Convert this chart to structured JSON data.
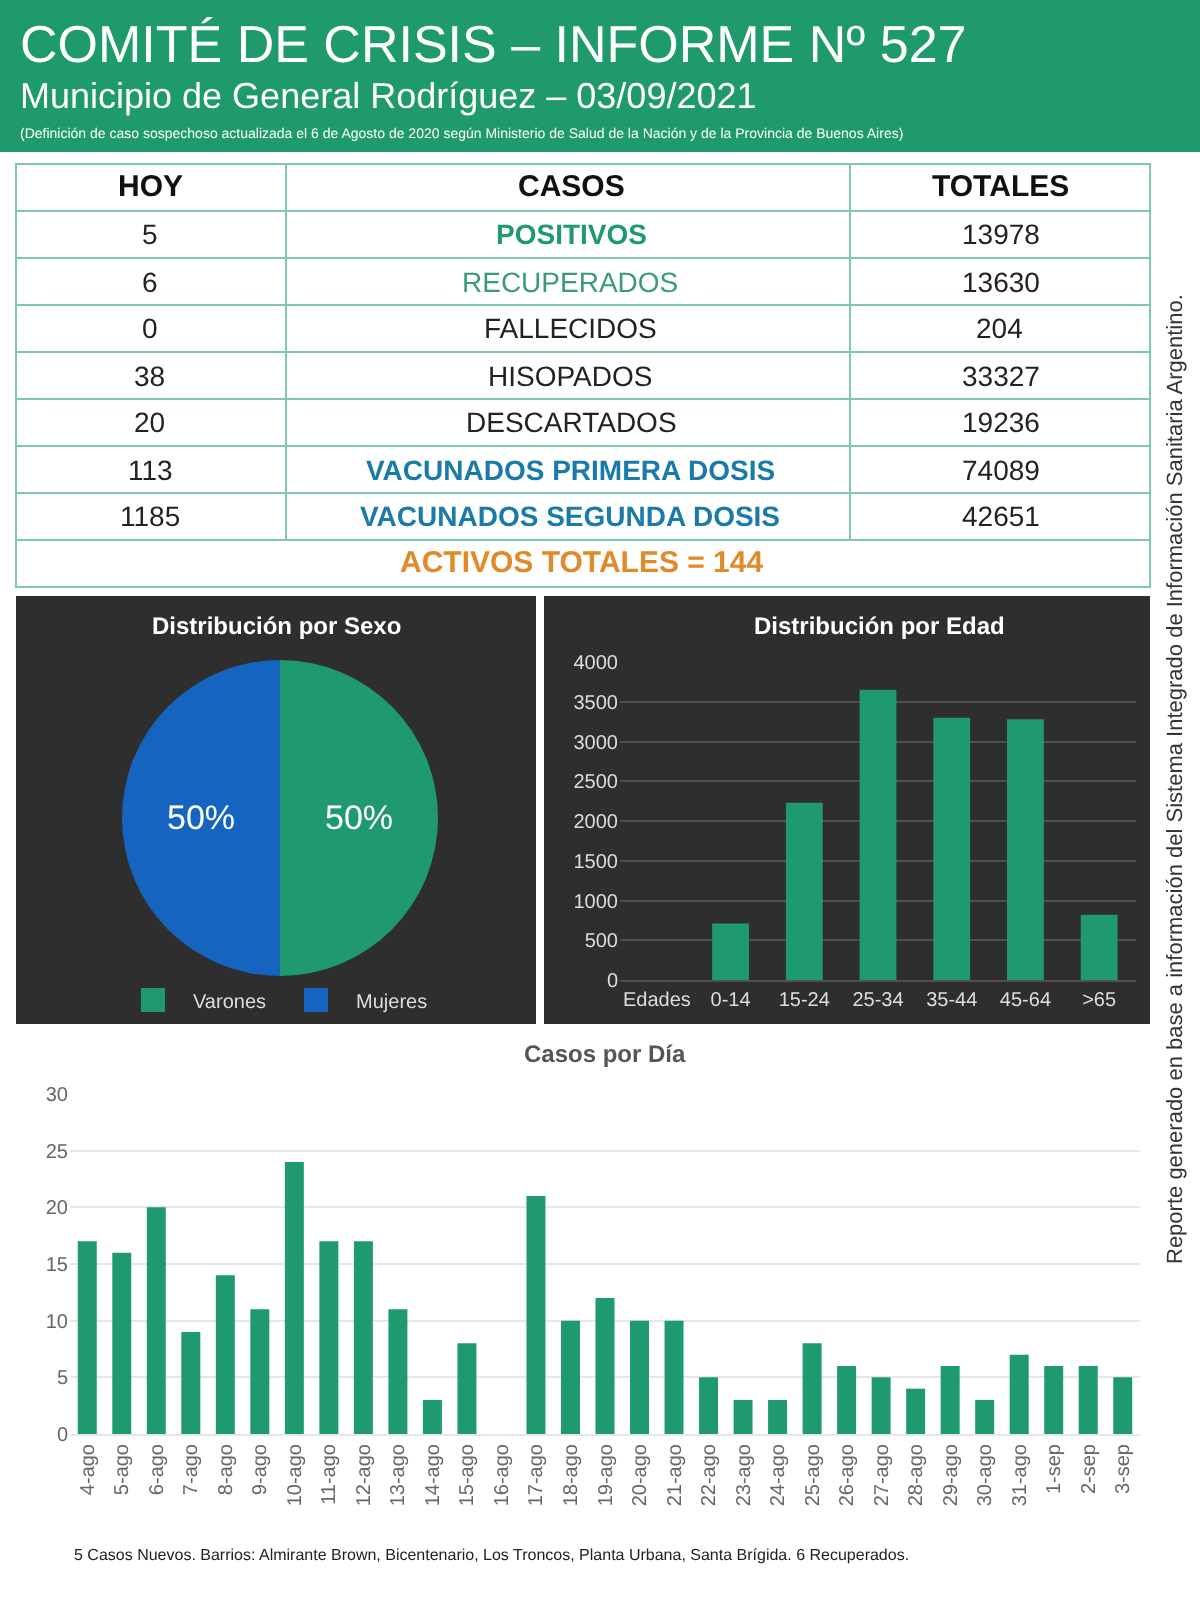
{
  "chart_data": [
    {
      "type": "other",
      "title": "COMITÉ DE CRISIS – INFORME Nº 527",
      "subtitle": "Municipio de General Rodríguez – 03/09/2021",
      "annotations": [
        "(Definición de caso sospechoso actualizada el 6 de Agosto de 2020 según Ministerio de Salud de la Nación y de la Provincia de Buenos Aires)",
        "HOY",
        "CASOS",
        "TOTALES",
        "5",
        "POSITIVOS",
        "13978",
        "6",
        "RECUPERADOS",
        "13630",
        "0",
        "FALLECIDOS",
        "204",
        "38",
        "HISOPADOS",
        "33327",
        "20",
        "DESCARTADOS",
        "19236",
        "113",
        "VACUNADOS PRIMERA DOSIS",
        "74089",
        "1185",
        "VACUNADOS SEGUNDA DOSIS",
        "42651",
        "ACTIVOS TOTALES = 144"
      ]
    },
    {
      "type": "pie",
      "title": "Distribución por Sexo",
      "categories": [
        "Varones",
        "Mujeres"
      ],
      "values": [
        50,
        50
      ],
      "colors": [
        "#1f9a6e",
        "#1565c0"
      ],
      "value_labels": [
        "50%",
        "50%"
      ],
      "legend": "bottom"
    },
    {
      "type": "bar",
      "title": "Distribución por Edad",
      "categories": [
        "Edades",
        "0-14",
        "15-24",
        "25-34",
        "35-44",
        "45-64",
        ">65"
      ],
      "values": [
        null,
        710,
        2230,
        3650,
        3300,
        3280,
        820
      ],
      "color": "#1f9a6e",
      "ylim": [
        0,
        4000
      ],
      "yticks": [
        0,
        500,
        1000,
        1500,
        2000,
        2500,
        3000,
        3500,
        4000
      ],
      "grid": "y"
    },
    {
      "type": "bar",
      "title": "Casos por Día",
      "categories": [
        "4-ago",
        "5-ago",
        "6-ago",
        "7-ago",
        "8-ago",
        "9-ago",
        "10-ago",
        "11-ago",
        "12-ago",
        "13-ago",
        "14-ago",
        "15-ago",
        "16-ago",
        "17-ago",
        "18-ago",
        "19-ago",
        "20-ago",
        "21-ago",
        "22-ago",
        "23-ago",
        "24-ago",
        "25-ago",
        "26-ago",
        "27-ago",
        "28-ago",
        "29-ago",
        "30-ago",
        "31-ago",
        "1-sep",
        "2-sep",
        "3-sep"
      ],
      "values": [
        17,
        16,
        20,
        9,
        14,
        11,
        24,
        17,
        17,
        11,
        3,
        8,
        0,
        21,
        10,
        12,
        10,
        10,
        5,
        3,
        3,
        8,
        6,
        5,
        4,
        6,
        3,
        7,
        6,
        6,
        5
      ],
      "color": "#1f9a6e",
      "ylim": [
        0,
        30
      ],
      "yticks": [
        0,
        5,
        10,
        15,
        20,
        25,
        30
      ],
      "grid": "y",
      "annotations": [
        "5 Casos Nuevos. Barrios: Almirante Brown, Bicentenario, Los Troncos, Planta Urbana, Santa Brígida. 6 Recuperados.",
        "Reporte generado en base a información del Sistema Integrado de Información Sanitaria Argentino."
      ]
    }
  ]
}
